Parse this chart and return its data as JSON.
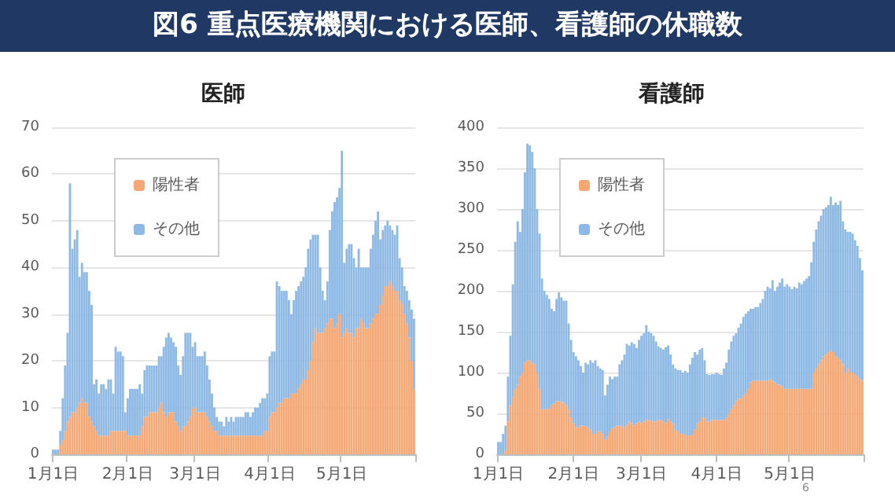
{
  "chart_data": [
    {
      "type": "bar",
      "title": "医師",
      "annotations": [
        "図6 重点医療機関における医師、看護師の休職数"
      ],
      "stacked": true,
      "legend": "top left",
      "grid": "y",
      "ylim": [
        0,
        70
      ],
      "yticks": [
        0,
        10,
        20,
        30,
        40,
        50,
        60,
        70
      ],
      "categories": [
        "1月1日",
        null,
        null,
        null,
        null,
        null,
        null,
        null,
        null,
        null,
        null,
        null,
        null,
        null,
        null,
        null,
        null,
        null,
        null,
        null,
        null,
        null,
        null,
        null,
        null,
        null,
        null,
        null,
        null,
        null,
        null,
        "2月1日",
        null,
        null,
        null,
        null,
        null,
        null,
        null,
        null,
        null,
        null,
        null,
        null,
        null,
        null,
        null,
        null,
        null,
        null,
        null,
        null,
        null,
        null,
        null,
        null,
        null,
        null,
        null,
        "3月1日",
        null,
        null,
        null,
        null,
        null,
        null,
        null,
        null,
        null,
        null,
        null,
        null,
        null,
        null,
        null,
        null,
        null,
        null,
        null,
        null,
        null,
        null,
        null,
        null,
        null,
        null,
        null,
        null,
        null,
        null,
        "4月1日",
        null,
        null,
        null,
        null,
        null,
        null,
        null,
        null,
        null,
        null,
        null,
        null,
        null,
        null,
        null,
        null,
        null,
        null,
        null,
        null,
        null,
        null,
        null,
        null,
        null,
        null,
        null,
        null,
        null,
        "5月1日",
        null,
        null,
        null,
        null,
        null,
        null,
        null,
        null,
        null,
        null,
        null,
        null,
        null,
        null,
        null,
        null,
        null,
        null,
        null,
        null,
        null,
        null,
        null,
        null,
        null,
        null,
        null,
        null,
        null,
        null
      ],
      "series": [
        {
          "name": "陽性者",
          "color": "#f5a874",
          "values": [
            0,
            0,
            0,
            2,
            3,
            5,
            7,
            8,
            9,
            9,
            10,
            11,
            12,
            11,
            11,
            8,
            7,
            6,
            5,
            4,
            4,
            4,
            4,
            4,
            5,
            5,
            5,
            5,
            5,
            5,
            5,
            4,
            4,
            4,
            4,
            4,
            4,
            6,
            8,
            8,
            9,
            9,
            9,
            9,
            10,
            11,
            9,
            8,
            9,
            9,
            9,
            7,
            6,
            5,
            6,
            6,
            7,
            8,
            10,
            10,
            9,
            9,
            9,
            9,
            8,
            7,
            6,
            5,
            5,
            4,
            4,
            4,
            4,
            4,
            4,
            4,
            4,
            4,
            4,
            4,
            4,
            4,
            4,
            4,
            4,
            4,
            4,
            4,
            5,
            5,
            8,
            9,
            9,
            10,
            11,
            11,
            12,
            12,
            12,
            13,
            13,
            13,
            14,
            15,
            16,
            16,
            18,
            20,
            24,
            27,
            26,
            26,
            26,
            27,
            28,
            29,
            29,
            27,
            28,
            30,
            25,
            26,
            27,
            26,
            26,
            25,
            27,
            27,
            29,
            28,
            27,
            27,
            28,
            29,
            30,
            30,
            32,
            34,
            36,
            36,
            37,
            36,
            35,
            35,
            33,
            32,
            30,
            28,
            25,
            20,
            14
          ]
        },
        {
          "name": "その他",
          "color": "#8db9e4",
          "values": [
            1,
            1,
            1,
            3,
            9,
            14,
            19,
            50,
            35,
            37,
            38,
            27,
            29,
            28,
            28,
            27,
            25,
            9,
            11,
            9,
            11,
            11,
            10,
            12,
            11,
            8,
            18,
            17,
            17,
            16,
            4,
            8,
            10,
            10,
            10,
            10,
            11,
            7,
            10,
            11,
            10,
            10,
            10,
            10,
            11,
            10,
            14,
            17,
            17,
            16,
            15,
            16,
            13,
            12,
            15,
            20,
            19,
            18,
            13,
            14,
            12,
            12,
            12,
            13,
            11,
            9,
            7,
            5,
            3,
            3,
            3,
            2,
            4,
            3,
            4,
            3,
            4,
            4,
            4,
            4,
            5,
            5,
            4,
            5,
            6,
            6,
            7,
            8,
            7,
            8,
            13,
            13,
            13,
            27,
            25,
            24,
            23,
            23,
            21,
            17,
            20,
            22,
            22,
            22,
            22,
            24,
            26,
            26,
            23,
            20,
            21,
            14,
            9,
            6,
            9,
            19,
            23,
            27,
            27,
            27,
            40,
            15,
            17,
            19,
            19,
            17,
            13,
            17,
            11,
            12,
            13,
            13,
            16,
            18,
            20,
            22,
            14,
            14,
            13,
            14,
            12,
            12,
            12,
            14,
            9,
            8,
            6,
            7,
            8,
            11,
            15
          ]
        }
      ]
    },
    {
      "type": "bar",
      "title": "看護師",
      "annotations": [
        "6"
      ],
      "stacked": true,
      "legend": "top left",
      "grid": "y",
      "ylim": [
        0,
        400
      ],
      "yticks": [
        0,
        50,
        100,
        150,
        200,
        250,
        300,
        350,
        400
      ],
      "categories": [
        "1月1日",
        null,
        null,
        null,
        null,
        null,
        null,
        null,
        null,
        null,
        null,
        null,
        null,
        null,
        null,
        null,
        null,
        null,
        null,
        null,
        null,
        null,
        null,
        null,
        null,
        null,
        null,
        null,
        null,
        null,
        null,
        "2月1日",
        null,
        null,
        null,
        null,
        null,
        null,
        null,
        null,
        null,
        null,
        null,
        null,
        null,
        null,
        null,
        null,
        null,
        null,
        null,
        null,
        null,
        null,
        null,
        null,
        null,
        null,
        null,
        "3月1日",
        null,
        null,
        null,
        null,
        null,
        null,
        null,
        null,
        null,
        null,
        null,
        null,
        null,
        null,
        null,
        null,
        null,
        null,
        null,
        null,
        null,
        null,
        null,
        null,
        null,
        null,
        null,
        null,
        null,
        null,
        "4月1日",
        null,
        null,
        null,
        null,
        null,
        null,
        null,
        null,
        null,
        null,
        null,
        null,
        null,
        null,
        null,
        null,
        null,
        null,
        null,
        null,
        null,
        null,
        null,
        null,
        null,
        null,
        null,
        null,
        null,
        "5月1日",
        null,
        null,
        null,
        null,
        null,
        null,
        null,
        null,
        null,
        null,
        null,
        null,
        null,
        null,
        null,
        null,
        null,
        null,
        null,
        null,
        null,
        null,
        null,
        null,
        null,
        null,
        null,
        null,
        null,
        null
      ],
      "series": [
        {
          "name": "陽性者",
          "color": "#f5a874",
          "values": [
            0,
            0,
            0,
            5,
            40,
            60,
            70,
            80,
            85,
            95,
            100,
            112,
            115,
            115,
            112,
            110,
            100,
            80,
            55,
            55,
            55,
            56,
            60,
            62,
            65,
            65,
            64,
            63,
            60,
            55,
            45,
            38,
            33,
            33,
            35,
            35,
            34,
            33,
            30,
            25,
            25,
            28,
            28,
            25,
            18,
            22,
            28,
            32,
            33,
            35,
            35,
            34,
            33,
            36,
            40,
            38,
            35,
            38,
            40,
            38,
            40,
            42,
            42,
            41,
            40,
            40,
            42,
            42,
            40,
            38,
            43,
            40,
            38,
            30,
            28,
            25,
            25,
            24,
            23,
            23,
            24,
            30,
            38,
            40,
            45,
            45,
            40,
            40,
            42,
            42,
            42,
            42,
            42,
            42,
            45,
            50,
            55,
            60,
            65,
            68,
            68,
            72,
            75,
            80,
            88,
            90,
            90,
            90,
            90,
            90,
            90,
            90,
            92,
            90,
            88,
            85,
            85,
            83,
            80,
            80,
            80,
            80,
            80,
            80,
            80,
            80,
            80,
            80,
            80,
            80,
            100,
            105,
            110,
            115,
            120,
            122,
            125,
            127,
            125,
            120,
            118,
            115,
            110,
            100,
            105,
            100,
            100,
            98,
            95,
            92,
            90
          ]
        },
        {
          "name": "その他",
          "color": "#8db9e4",
          "values": [
            15,
            15,
            25,
            30,
            55,
            85,
            138,
            180,
            200,
            177,
            200,
            233,
            265,
            263,
            258,
            240,
            200,
            190,
            160,
            145,
            140,
            134,
            118,
            113,
            125,
            133,
            128,
            125,
            128,
            105,
            95,
            87,
            87,
            82,
            73,
            65,
            78,
            77,
            85,
            87,
            90,
            80,
            77,
            78,
            54,
            63,
            67,
            60,
            62,
            60,
            75,
            81,
            89,
            99,
            93,
            99,
            100,
            92,
            100,
            107,
            108,
            116,
            108,
            107,
            105,
            98,
            90,
            88,
            88,
            93,
            90,
            82,
            72,
            75,
            75,
            78,
            75,
            78,
            77,
            87,
            94,
            95,
            84,
            88,
            85,
            70,
            58,
            57,
            56,
            56,
            58,
            56,
            55,
            63,
            67,
            78,
            83,
            85,
            83,
            87,
            92,
            96,
            97,
            95,
            90,
            88,
            90,
            90,
            95,
            100,
            110,
            115,
            111,
            123,
            112,
            120,
            125,
            132,
            125,
            128,
            125,
            122,
            125,
            123,
            130,
            128,
            132,
            135,
            138,
            155,
            160,
            170,
            175,
            177,
            180,
            180,
            180,
            188,
            180,
            188,
            187,
            195,
            175,
            175,
            167,
            172,
            170,
            164,
            160,
            148,
            135
          ]
        }
      ]
    }
  ]
}
